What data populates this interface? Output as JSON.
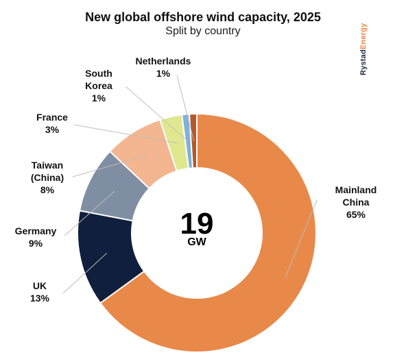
{
  "title": "New global offshore wind capacity, 2025",
  "subtitle": "Split by country",
  "brand": {
    "part1": "Rystad",
    "part2": "Energy"
  },
  "center": {
    "value": "19",
    "unit": "GW"
  },
  "chart_data": {
    "type": "pie",
    "donut": true,
    "title": "New global offshore wind capacity, 2025",
    "subtitle": "Split by country",
    "total": "19 GW",
    "slices": [
      {
        "label": "Mainland China",
        "value": 65,
        "display": "65%",
        "color": "#e8894a"
      },
      {
        "label": "UK",
        "value": 13,
        "display": "13%",
        "color": "#0f1f3d"
      },
      {
        "label": "Germany",
        "value": 9,
        "display": "9%",
        "color": "#7f8ea3"
      },
      {
        "label": "Taiwan (China)",
        "value": 8,
        "display": "8%",
        "color": "#f3b690"
      },
      {
        "label": "France",
        "value": 3,
        "display": "3%",
        "color": "#dfe88e"
      },
      {
        "label": "South Korea",
        "value": 1,
        "display": "1%",
        "color": "#7fb1d9"
      },
      {
        "label": "Netherlands",
        "value": 1,
        "display": "1%",
        "color": "#b5582a"
      }
    ]
  },
  "labels": {
    "mainland_china": {
      "line1": "Mainland",
      "line2": "China",
      "pct": "65%"
    },
    "uk": {
      "line1": "UK",
      "pct": "13%"
    },
    "germany": {
      "line1": "Germany",
      "pct": "9%"
    },
    "taiwan": {
      "line1": "Taiwan",
      "line2": "(China)",
      "pct": "8%"
    },
    "france": {
      "line1": "France",
      "pct": "3%"
    },
    "south_korea": {
      "line1": "South",
      "line2": "Korea",
      "pct": "1%"
    },
    "netherlands": {
      "line1": "Netherlands",
      "pct": "1%"
    }
  }
}
